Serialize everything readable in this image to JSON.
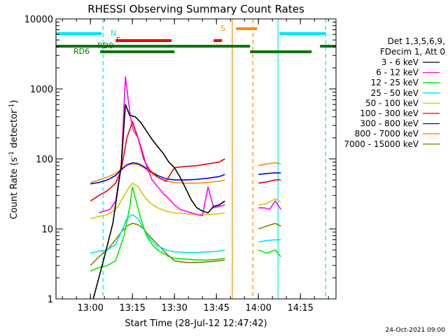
{
  "chart_data": {
    "type": "line",
    "title": "RHESSI Observing Summary Count Rates",
    "xlabel": "Start Time (28-Jul-12 12:47:42)",
    "ylabel_main": "Count Rate (s",
    "ylabel_sup1": "-1",
    "ylabel_mid": " detector",
    "ylabel_sup2": "-1",
    "ylabel_end": ")",
    "y_scale": "log",
    "ylim": [
      1,
      10000
    ],
    "xlim": [
      "12:47:42",
      "14:27:42"
    ],
    "x_ticks": [
      "13:00",
      "13:15",
      "13:30",
      "13:45",
      "14:00",
      "14:15"
    ],
    "y_ticks": [
      "1",
      "10",
      "100",
      "1000",
      "10000"
    ],
    "legend_header": [
      "Det 1,3,5,6,9,",
      "FDecim 1, Att 0"
    ],
    "footer_date": "24-Oct-2021 09:00",
    "flag_labels": {
      "N": "N",
      "F": "F",
      "S": "S",
      "RD0": "RD0",
      "RD6": "RD6"
    },
    "flag_bars": {
      "N": {
        "color": "#00e5ee",
        "segments": [
          [
            "12:47:42",
            "13:04:00"
          ],
          [
            "14:07:30",
            "14:24:00"
          ]
        ]
      },
      "F": {
        "color": "#ee0000",
        "segments": [
          [
            "13:09:00",
            "13:29:00"
          ],
          [
            "13:44:00",
            "13:47:00"
          ]
        ]
      },
      "S": {
        "color": "#ff8c00",
        "segments": [
          [
            "13:52:00",
            "13:59:30"
          ]
        ]
      },
      "RD0": {
        "color": "#007700",
        "segments": [
          [
            "12:47:42",
            "13:30:00"
          ],
          [
            "13:30:00",
            "13:57:00"
          ],
          [
            "14:22:00",
            "14:27:42"
          ]
        ]
      },
      "RD6": {
        "color": "#007700",
        "segments": [
          [
            "13:03:30",
            "13:30:00"
          ],
          [
            "13:57:00",
            "14:19:00"
          ]
        ]
      }
    },
    "vertical_lines": [
      {
        "time": "12:47:42",
        "color": "#00e5ee",
        "style": "solid"
      },
      {
        "time": "13:04:30",
        "color": "#00e5ee",
        "style": "dashed"
      },
      {
        "time": "13:50:40",
        "color": "#ff8c00",
        "style": "solid"
      },
      {
        "time": "13:58:00",
        "color": "#ff8c00",
        "style": "dashed"
      },
      {
        "time": "14:07:00",
        "color": "#00e5ee",
        "style": "solid"
      },
      {
        "time": "14:24:00",
        "color": "#00e5ee",
        "style": "dashed"
      }
    ],
    "series": [
      {
        "name": "3 - 6 keV",
        "color": "#000000",
        "x": [
          "13:01:00",
          "13:03:00",
          "13:05:00",
          "13:08:00",
          "13:11:00",
          "13:12:30",
          "13:14:00",
          "13:16:00",
          "13:18:00",
          "13:20:00",
          "13:22:00",
          "13:24:00",
          "13:26:00",
          "13:28:00",
          "13:30:00",
          "13:32:00",
          "13:34:00",
          "13:36:00",
          "13:38:00",
          "13:40:00",
          "13:42:00",
          "13:44:00",
          "13:46:00",
          "13:48:00"
        ],
        "y": [
          1.0,
          2.0,
          4.0,
          12.0,
          80.0,
          600.0,
          420.0,
          400.0,
          330.0,
          250.0,
          190.0,
          150.0,
          120.0,
          90.0,
          75.0,
          55.0,
          38.0,
          26.0,
          20.0,
          18.0,
          17.0,
          21.0,
          22.0,
          25.0
        ]
      },
      {
        "name": "6 - 12 keV",
        "color": "#ff00ff",
        "x": [
          "13:03:00",
          "13:05:00",
          "13:07:00",
          "13:09:00",
          "13:11:00",
          "13:12:30",
          "13:13:30",
          "13:14:30",
          "13:15:30",
          "13:17:00",
          "13:18:30",
          "13:20:00",
          "13:22:00",
          "13:24:00",
          "13:26:00",
          "13:28:00",
          "13:30:00",
          "13:32:00",
          "13:34:00",
          "13:36:00",
          "13:38:00",
          "13:40:00",
          "13:42:00",
          "13:44:00",
          "13:46:00",
          "13:48:00",
          "14:00:00",
          "14:02:00",
          "14:04:00",
          "14:06:00",
          "14:08:00"
        ],
        "y": [
          17.0,
          18.0,
          19.0,
          25.0,
          80.0,
          1500.0,
          700.0,
          350.0,
          250.0,
          200.0,
          130.0,
          80.0,
          50.0,
          40.0,
          32.0,
          27.0,
          22.0,
          19.0,
          18.0,
          17.0,
          16.0,
          15.5,
          40.0,
          20.0,
          21.0,
          22.0,
          20.0,
          20.0,
          19.0,
          25.0,
          19.0
        ]
      },
      {
        "name": "12 - 25 keV",
        "color": "#00ee00",
        "x": [
          "13:00:00",
          "13:03:00",
          "13:06:00",
          "13:09:00",
          "13:12:00",
          "13:14:00",
          "13:15:00",
          "13:16:00",
          "13:18:00",
          "13:20:00",
          "13:22:00",
          "13:24:00",
          "13:26:00",
          "13:28:00",
          "13:30:00",
          "13:34:00",
          "13:38:00",
          "13:42:00",
          "13:46:00",
          "13:48:00",
          "14:00:00",
          "14:03:00",
          "14:06:00",
          "14:08:00"
        ],
        "y": [
          2.5,
          2.8,
          3.0,
          3.5,
          8.0,
          20.0,
          40.0,
          28.0,
          14.0,
          8.0,
          6.0,
          5.0,
          4.5,
          4.0,
          3.8,
          3.7,
          3.6,
          3.6,
          3.7,
          3.8,
          5.0,
          4.5,
          5.0,
          4.0
        ]
      },
      {
        "name": "25 - 50 keV",
        "color": "#00e5ee",
        "x": [
          "13:00:00",
          "13:03:00",
          "13:06:00",
          "13:09:00",
          "13:11:00",
          "13:13:00",
          "13:15:00",
          "13:17:00",
          "13:19:00",
          "13:21:00",
          "13:23:00",
          "13:25:00",
          "13:27:00",
          "13:29:00",
          "13:30:00",
          "13:34:00",
          "13:38:00",
          "13:42:00",
          "13:46:00",
          "13:48:00",
          "14:00:00",
          "14:03:00",
          "14:06:00",
          "14:08:00"
        ],
        "y": [
          4.5,
          4.8,
          5.0,
          6.0,
          9.0,
          14.0,
          16.0,
          14.0,
          10.0,
          7.5,
          6.0,
          5.5,
          5.0,
          4.8,
          4.7,
          4.6,
          4.6,
          4.7,
          4.8,
          5.0,
          6.5,
          6.8,
          7.0,
          7.0
        ]
      },
      {
        "name": "50 - 100 keV",
        "color": "#cccc00",
        "x": [
          "13:00:00",
          "13:03:00",
          "13:06:00",
          "13:09:00",
          "13:11:00",
          "13:13:00",
          "13:15:00",
          "13:17:00",
          "13:19:00",
          "13:21:00",
          "13:24:00",
          "13:27:00",
          "13:30:00",
          "13:34:00",
          "13:38:00",
          "13:42:00",
          "13:46:00",
          "13:48:00",
          "14:00:00",
          "14:03:00",
          "14:06:00",
          "14:08:00"
        ],
        "y": [
          14.0,
          15.0,
          16.0,
          19.0,
          25.0,
          35.0,
          45.0,
          40.0,
          30.0,
          24.0,
          20.0,
          18.0,
          17.0,
          16.5,
          16.0,
          16.0,
          16.5,
          17.0,
          22.0,
          23.0,
          27.0,
          24.0
        ]
      },
      {
        "name": "100 - 300 keV",
        "color": "#ee0000",
        "x": [
          "13:00:00",
          "13:03:00",
          "13:06:00",
          "13:09:00",
          "13:11:00",
          "13:13:00",
          "13:15:00",
          "13:17:00",
          "13:19:00",
          "13:21:00",
          "13:24:00",
          "13:27:00",
          "13:30:00",
          "13:34:00",
          "13:38:00",
          "13:42:00",
          "13:46:00",
          "13:48:00",
          "14:00:00",
          "14:03:00",
          "14:06:00",
          "14:08:00"
        ],
        "y": [
          25.0,
          30.0,
          35.0,
          45.0,
          70.0,
          200.0,
          340.0,
          200.0,
          100.0,
          70.0,
          55.0,
          48.0,
          75.0,
          78.0,
          80.0,
          85.0,
          90.0,
          100.0,
          45.0,
          47.0,
          50.0,
          50.0
        ]
      },
      {
        "name": "300 - 800 keV",
        "color": "#0000ee",
        "x": [
          "13:00:00",
          "13:03:00",
          "13:06:00",
          "13:09:00",
          "13:11:00",
          "13:13:00",
          "13:15:00",
          "13:17:00",
          "13:19:00",
          "13:21:00",
          "13:24:00",
          "13:27:00",
          "13:30:00",
          "13:34:00",
          "13:38:00",
          "13:42:00",
          "13:46:00",
          "13:48:00",
          "14:00:00",
          "14:03:00",
          "14:06:00",
          "14:08:00"
        ],
        "y": [
          44.0,
          46.0,
          50.0,
          58.0,
          70.0,
          82.0,
          88.0,
          86.0,
          78.0,
          68.0,
          58.0,
          52.0,
          50.0,
          50.0,
          51.0,
          53.0,
          56.0,
          60.0,
          60.0,
          62.0,
          63.0,
          63.0
        ]
      },
      {
        "name": "800 - 7000 keV",
        "color": "#ff8c00",
        "x": [
          "13:00:00",
          "13:03:00",
          "13:06:00",
          "13:09:00",
          "13:11:00",
          "13:13:00",
          "13:15:00",
          "13:17:00",
          "13:19:00",
          "13:21:00",
          "13:24:00",
          "13:27:00",
          "13:30:00",
          "13:34:00",
          "13:38:00",
          "13:42:00",
          "13:46:00",
          "13:48:00",
          "14:00:00",
          "14:03:00",
          "14:06:00",
          "14:08:00"
        ],
        "y": [
          46.0,
          50.0,
          55.0,
          62.0,
          72.0,
          82.0,
          85.0,
          83.0,
          75.0,
          65.0,
          55.0,
          48.0,
          46.0,
          45.0,
          45.0,
          46.0,
          48.0,
          50.0,
          80.0,
          85.0,
          88.0,
          85.0
        ]
      },
      {
        "name": "7000 - 15000 keV",
        "color": "#8b7d00",
        "x": [
          "13:00:00",
          "13:03:00",
          "13:06:00",
          "13:09:00",
          "13:11:00",
          "13:13:00",
          "13:15:00",
          "13:17:00",
          "13:19:00",
          "13:21:00",
          "13:24:00",
          "13:27:00",
          "13:30:00",
          "13:34:00",
          "13:38:00",
          "13:42:00",
          "13:46:00",
          "13:48:00",
          "14:00:00",
          "14:03:00",
          "14:06:00",
          "14:08:00"
        ],
        "y": [
          3.0,
          4.0,
          5.0,
          7.0,
          9.0,
          11.0,
          12.0,
          11.5,
          10.0,
          8.0,
          6.0,
          4.5,
          3.5,
          3.3,
          3.3,
          3.4,
          3.5,
          3.6,
          10.0,
          11.0,
          12.0,
          11.0
        ]
      }
    ]
  }
}
